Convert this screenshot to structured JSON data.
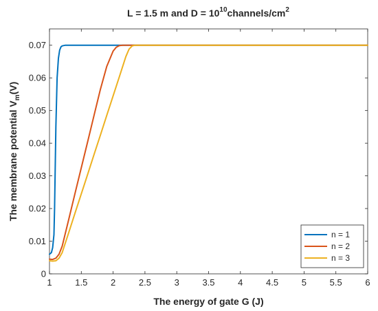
{
  "chart_data": {
    "type": "line",
    "title": {
      "prefix": "L = 1.5 m and D = 10",
      "sup1": "10",
      "middle": "channels/cm",
      "sup2": "2"
    },
    "xlabel": "The energy of gate G (J)",
    "ylabel": {
      "prefix": "The membrane potential V",
      "sub": "m",
      "suffix": "(V)"
    },
    "xlim": [
      1,
      6
    ],
    "ylim": [
      0,
      0.075
    ],
    "xticks": [
      1,
      1.5,
      2,
      2.5,
      3,
      3.5,
      4,
      4.5,
      5,
      5.5,
      6
    ],
    "xtick_labels": [
      "1",
      "1.5",
      "2",
      "2.5",
      "3",
      "3.5",
      "4",
      "4.5",
      "5",
      "5.5",
      "6"
    ],
    "yticks": [
      0,
      0.01,
      0.02,
      0.03,
      0.04,
      0.05,
      0.06,
      0.07
    ],
    "ytick_labels": [
      "0",
      "0.01",
      "0.02",
      "0.03",
      "0.04",
      "0.05",
      "0.06",
      "0.07"
    ],
    "grid": false,
    "legend_position": "bottom-right",
    "series": [
      {
        "name": "n = 1",
        "color": "#0072BD",
        "x": [
          1.0,
          1.03,
          1.05,
          1.07,
          1.08,
          1.1,
          1.12,
          1.14,
          1.16,
          1.18,
          1.2,
          1.25,
          1.3,
          2.0,
          3.0,
          4.0,
          5.0,
          6.0
        ],
        "y": [
          0.006,
          0.0065,
          0.008,
          0.012,
          0.02,
          0.045,
          0.06,
          0.066,
          0.0685,
          0.0695,
          0.0698,
          0.07,
          0.07,
          0.07,
          0.07,
          0.07,
          0.07,
          0.07
        ]
      },
      {
        "name": "n = 2",
        "color": "#D95319",
        "x": [
          1.0,
          1.05,
          1.1,
          1.15,
          1.2,
          1.3,
          1.4,
          1.5,
          1.6,
          1.7,
          1.8,
          1.9,
          2.0,
          2.05,
          2.1,
          2.15,
          2.2,
          3.0,
          4.0,
          5.0,
          6.0
        ],
        "y": [
          0.0045,
          0.0044,
          0.0048,
          0.006,
          0.0085,
          0.0165,
          0.0245,
          0.0325,
          0.0405,
          0.0485,
          0.0565,
          0.0635,
          0.0682,
          0.0694,
          0.0699,
          0.07,
          0.07,
          0.07,
          0.07,
          0.07,
          0.07
        ]
      },
      {
        "name": "n = 3",
        "color": "#EDB120",
        "x": [
          1.0,
          1.05,
          1.1,
          1.15,
          1.2,
          1.3,
          1.4,
          1.5,
          1.6,
          1.7,
          1.8,
          1.9,
          2.0,
          2.1,
          2.2,
          2.25,
          2.3,
          2.35,
          3.0,
          4.0,
          5.0,
          6.0
        ],
        "y": [
          0.004,
          0.0039,
          0.004,
          0.0048,
          0.0065,
          0.0125,
          0.0185,
          0.0245,
          0.0305,
          0.0365,
          0.0425,
          0.0485,
          0.0545,
          0.0605,
          0.0665,
          0.0688,
          0.0698,
          0.07,
          0.07,
          0.07,
          0.07,
          0.07
        ]
      }
    ]
  }
}
